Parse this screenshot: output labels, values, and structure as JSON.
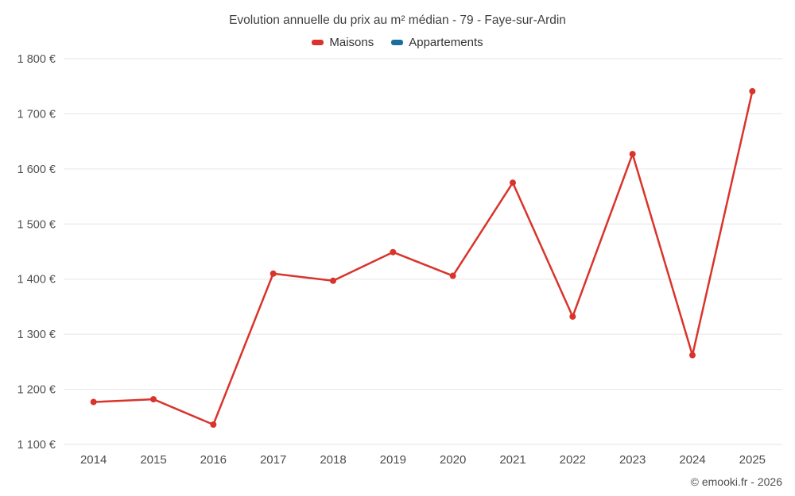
{
  "page": {
    "credit": "© emooki.fr - 2026"
  },
  "chart_data": {
    "type": "line",
    "title": "Evolution annuelle du prix au m² médian - 79 - Faye-sur-Ardin",
    "xlabel": "",
    "ylabel": "",
    "grid": true,
    "legend_position": "top",
    "ylim": [
      1100,
      1800
    ],
    "ytick_step": 100,
    "categories": [
      "2014",
      "2015",
      "2016",
      "2017",
      "2018",
      "2019",
      "2020",
      "2021",
      "2022",
      "2023",
      "2024",
      "2025"
    ],
    "yticks": [
      {
        "value": 1100,
        "label": "1 100 €"
      },
      {
        "value": 1200,
        "label": "1 200 €"
      },
      {
        "value": 1300,
        "label": "1 300 €"
      },
      {
        "value": 1400,
        "label": "1 400 €"
      },
      {
        "value": 1500,
        "label": "1 500 €"
      },
      {
        "value": 1600,
        "label": "1 600 €"
      },
      {
        "value": 1700,
        "label": "1 700 €"
      },
      {
        "value": 1800,
        "label": "1 800 €"
      }
    ],
    "series": [
      {
        "name": "Maisons",
        "color": "#d9342b",
        "values": [
          1177,
          1182,
          1136,
          1410,
          1397,
          1449,
          1406,
          1575,
          1332,
          1627,
          1262,
          1741
        ]
      },
      {
        "name": "Appartements",
        "color": "#186f9e",
        "values": []
      }
    ]
  }
}
